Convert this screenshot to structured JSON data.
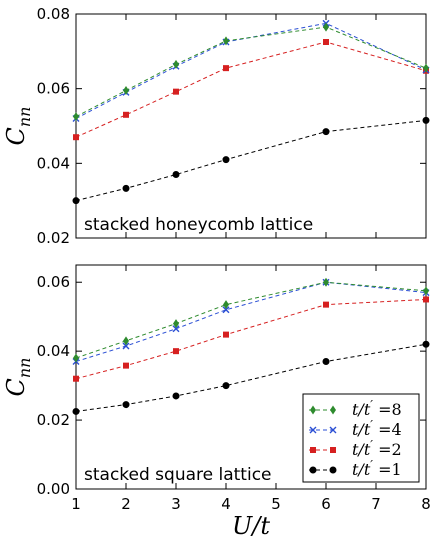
{
  "chart_data": [
    {
      "type": "line",
      "annotation": "stacked honeycomb lattice",
      "ylabel_main": "C",
      "ylabel_sub": "nn",
      "xlim": [
        1,
        8
      ],
      "ylim": [
        0.02,
        0.08
      ],
      "yticks": [
        0.02,
        0.04,
        0.06,
        0.08
      ],
      "ytick_labels": [
        "0.02",
        "0.04",
        "0.06",
        "0.08"
      ],
      "x": [
        1,
        2,
        3,
        4,
        6,
        8
      ],
      "series": [
        {
          "key": "t8",
          "values": [
            0.0525,
            0.0595,
            0.0665,
            0.0728,
            0.0765,
            0.0655
          ]
        },
        {
          "key": "t4",
          "values": [
            0.052,
            0.059,
            0.066,
            0.0725,
            0.0775,
            0.065
          ]
        },
        {
          "key": "t2",
          "values": [
            0.047,
            0.053,
            0.0592,
            0.0655,
            0.0725,
            0.0648
          ]
        },
        {
          "key": "t1",
          "values": [
            0.03,
            0.0333,
            0.037,
            0.041,
            0.0485,
            0.0515
          ]
        }
      ]
    },
    {
      "type": "line",
      "annotation": "stacked square lattice",
      "ylabel_main": "C",
      "ylabel_sub": "nn",
      "xlabel": "U/t",
      "xlim": [
        1,
        8
      ],
      "ylim": [
        0.0,
        0.065
      ],
      "xticks": [
        1,
        2,
        3,
        4,
        5,
        6,
        7,
        8
      ],
      "xtick_labels": [
        "1",
        "2",
        "3",
        "4",
        "5",
        "6",
        "7",
        "8"
      ],
      "yticks": [
        0.0,
        0.02,
        0.04,
        0.06
      ],
      "ytick_labels": [
        "0.00",
        "0.02",
        "0.04",
        "0.06"
      ],
      "legend_position": "lower-right",
      "x": [
        1,
        2,
        3,
        4,
        6,
        8
      ],
      "series": [
        {
          "key": "t8",
          "name": "t/t′ =8",
          "values": [
            0.038,
            0.043,
            0.048,
            0.0535,
            0.06,
            0.0575
          ]
        },
        {
          "key": "t4",
          "name": "t/t′ =4",
          "values": [
            0.037,
            0.0415,
            0.0465,
            0.052,
            0.06,
            0.057
          ]
        },
        {
          "key": "t2",
          "name": "t/t′ =2",
          "values": [
            0.032,
            0.0358,
            0.04,
            0.0448,
            0.0535,
            0.055
          ]
        },
        {
          "key": "t1",
          "name": "t/t′ =1",
          "values": [
            0.0225,
            0.0245,
            0.027,
            0.03,
            0.037,
            0.042
          ]
        }
      ]
    }
  ],
  "legend": [
    {
      "key": "t8",
      "prefix": "t/t",
      "suffix": " =8"
    },
    {
      "key": "t4",
      "prefix": "t/t",
      "suffix": " =4"
    },
    {
      "key": "t2",
      "prefix": "t/t",
      "suffix": " =2"
    },
    {
      "key": "t1",
      "prefix": "t/t",
      "suffix": " =1"
    }
  ],
  "styles": {
    "t8": {
      "color": "#2e8b2e",
      "marker": "diamond-icon"
    },
    "t4": {
      "color": "#2b4fd4",
      "marker": "x-icon"
    },
    "t2": {
      "color": "#d62020",
      "marker": "square-icon"
    },
    "t1": {
      "color": "#000000",
      "marker": "circle-icon"
    }
  }
}
